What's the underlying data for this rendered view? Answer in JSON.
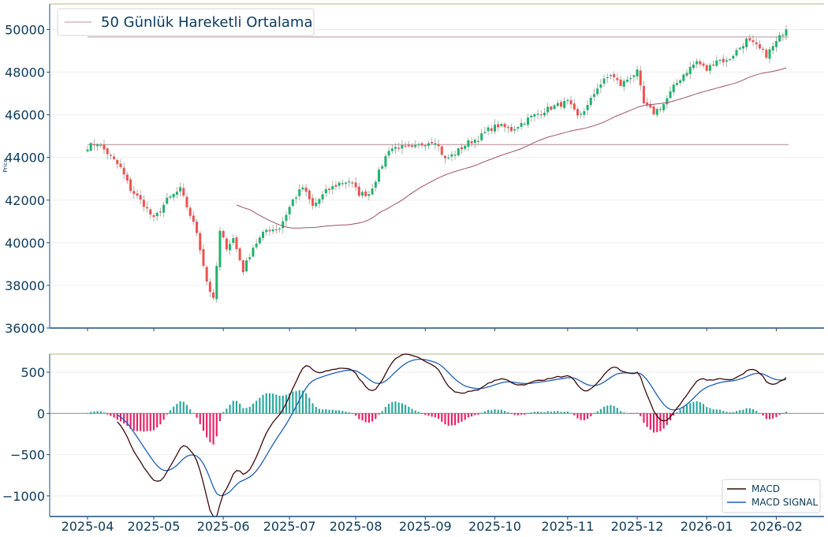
{
  "chart_data": [
    {
      "type": "candlestick",
      "ylabel": "Price",
      "ylim": [
        36000,
        51200
      ],
      "yticks": [
        "36000",
        "38000",
        "40000",
        "42000",
        "44000",
        "46000",
        "48000",
        "50000"
      ],
      "ytick_values": [
        36000,
        38000,
        40000,
        42000,
        44000,
        46000,
        48000,
        50000
      ],
      "legend": {
        "label": "50 Günlük Hareketli Ortalama",
        "placement": "top-left"
      },
      "horizontal_levels": [
        44600,
        49650
      ],
      "ma_start_index": 45,
      "trading_days": 212,
      "colors": {
        "up": "#26a69a",
        "up_fill": "#1fb36c",
        "down": "#ef5350",
        "ma": "#a0506a",
        "levels": "#c9a6b0"
      },
      "closes_anchor": [
        [
          0,
          44500
        ],
        [
          3,
          44700
        ],
        [
          6,
          44200
        ],
        [
          10,
          43500
        ],
        [
          13,
          42500
        ],
        [
          17,
          41800
        ],
        [
          20,
          41100
        ],
        [
          24,
          42000
        ],
        [
          28,
          42500
        ],
        [
          31,
          41300
        ],
        [
          33,
          40500
        ],
        [
          36,
          38200
        ],
        [
          38,
          37300
        ],
        [
          40,
          40500
        ],
        [
          42,
          39800
        ],
        [
          44,
          40200
        ],
        [
          47,
          38700
        ],
        [
          50,
          39800
        ],
        [
          54,
          40600
        ],
        [
          58,
          40700
        ],
        [
          62,
          42000
        ],
        [
          65,
          42600
        ],
        [
          68,
          41700
        ],
        [
          72,
          42400
        ],
        [
          76,
          42800
        ],
        [
          79,
          42900
        ],
        [
          82,
          42300
        ],
        [
          85,
          42300
        ],
        [
          88,
          43300
        ],
        [
          91,
          44400
        ],
        [
          94,
          44500
        ],
        [
          98,
          44400
        ],
        [
          102,
          44700
        ],
        [
          105,
          44800
        ],
        [
          108,
          43900
        ],
        [
          111,
          44200
        ],
        [
          115,
          44700
        ],
        [
          118,
          44900
        ],
        [
          121,
          45300
        ],
        [
          124,
          45500
        ],
        [
          128,
          45300
        ],
        [
          131,
          45600
        ],
        [
          134,
          45900
        ],
        [
          138,
          46200
        ],
        [
          141,
          46400
        ],
        [
          145,
          46600
        ],
        [
          148,
          45900
        ],
        [
          151,
          46400
        ],
        [
          154,
          47300
        ],
        [
          158,
          47900
        ],
        [
          161,
          47400
        ],
        [
          164,
          47800
        ],
        [
          166,
          48000
        ],
        [
          168,
          46500
        ],
        [
          171,
          46100
        ],
        [
          174,
          46500
        ],
        [
          177,
          47300
        ],
        [
          180,
          47900
        ],
        [
          184,
          48500
        ],
        [
          187,
          48100
        ],
        [
          190,
          48600
        ],
        [
          193,
          48500
        ],
        [
          196,
          49000
        ],
        [
          199,
          49500
        ],
        [
          202,
          49200
        ],
        [
          205,
          48800
        ],
        [
          208,
          49400
        ],
        [
          211,
          50100
        ]
      ]
    },
    {
      "type": "line+bar",
      "ylim": [
        -1250,
        720
      ],
      "yticks": [
        "−1000",
        "−500",
        "0",
        "500"
      ],
      "ytick_values": [
        -1000,
        -500,
        0,
        500
      ],
      "xticks": [
        "2025-04",
        "2025-05",
        "2025-06",
        "2025-07",
        "2025-08",
        "2025-09",
        "2025-10",
        "2025-11",
        "2025-12",
        "2026-01",
        "2026-02"
      ],
      "xtick_index": [
        0,
        20,
        41,
        61,
        81,
        102,
        123,
        145,
        166,
        187,
        208
      ],
      "series": [
        {
          "name": "MACD",
          "color": "#3b0a0a"
        },
        {
          "name": "MACD SIGNAL",
          "color": "#1f5fb4"
        }
      ],
      "legend": {
        "placement": "bottom-right"
      },
      "histogram_colors": {
        "positive": "#26a69a",
        "negative": "#e91e63"
      }
    }
  ]
}
